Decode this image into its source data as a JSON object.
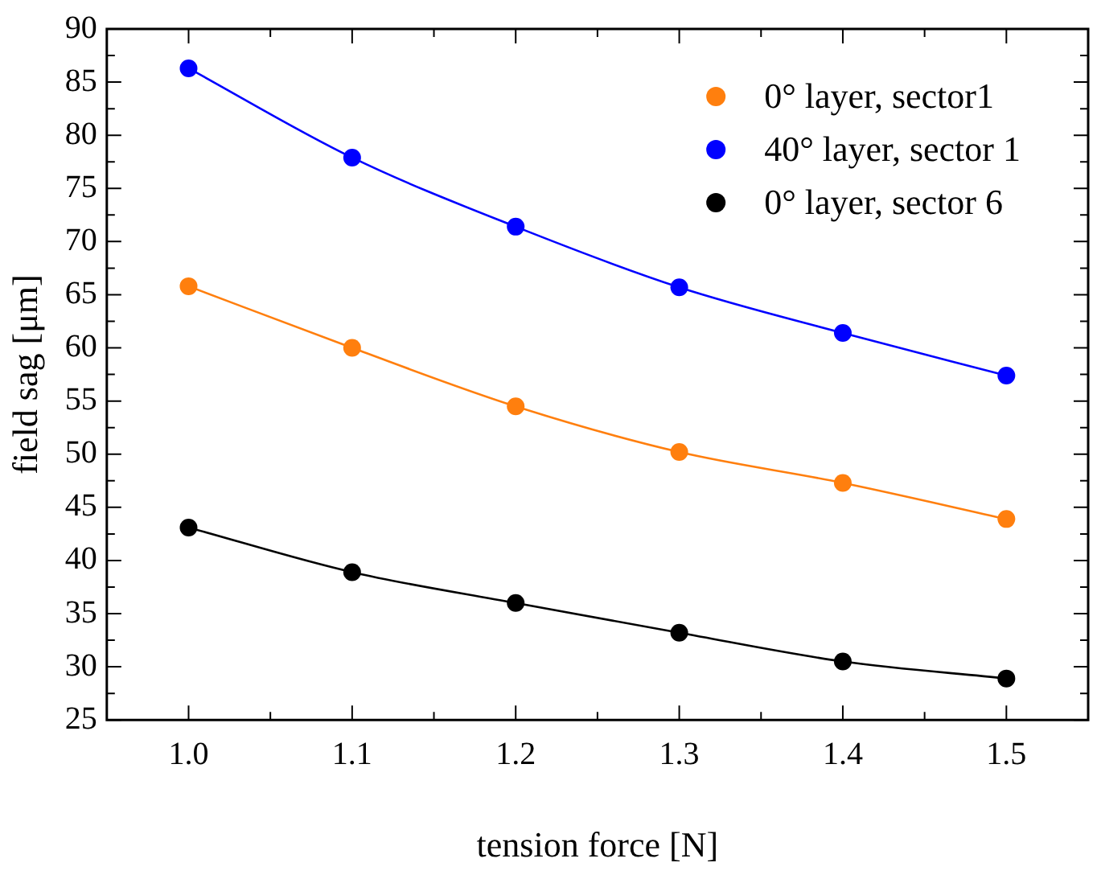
{
  "chart_data": {
    "type": "line",
    "xlabel": "tension force [N]",
    "ylabel": "field sag [μm]",
    "x": [
      1.0,
      1.1,
      1.2,
      1.3,
      1.4,
      1.5
    ],
    "series": [
      {
        "name": "0° layer, sector1",
        "color": "#ff7f0e",
        "values": [
          65.8,
          60.0,
          54.5,
          50.2,
          47.3,
          43.9
        ]
      },
      {
        "name": "40° layer, sector 1",
        "color": "#0000ff",
        "values": [
          86.3,
          77.9,
          71.4,
          65.7,
          61.4,
          57.4
        ]
      },
      {
        "name": "0° layer, sector 6",
        "color": "#000000",
        "values": [
          43.1,
          38.9,
          36.0,
          33.2,
          30.5,
          28.9
        ]
      }
    ],
    "xlim": [
      0.95,
      1.55
    ],
    "xticks": [
      {
        "value": 1.0,
        "label": "1.0"
      },
      {
        "value": 1.05,
        "label": null
      },
      {
        "value": 1.1,
        "label": "1.1"
      },
      {
        "value": 1.15,
        "label": null
      },
      {
        "value": 1.2,
        "label": "1.2"
      },
      {
        "value": 1.25,
        "label": null
      },
      {
        "value": 1.3,
        "label": "1.3"
      },
      {
        "value": 1.35,
        "label": null
      },
      {
        "value": 1.4,
        "label": "1.4"
      },
      {
        "value": 1.45,
        "label": null
      },
      {
        "value": 1.5,
        "label": "1.5"
      }
    ],
    "ylim": [
      25,
      90
    ],
    "yticks": [
      25,
      {
        "value": 27.5,
        "label": null
      },
      30,
      {
        "value": 32.5,
        "label": null
      },
      35,
      {
        "value": 37.5,
        "label": null
      },
      40,
      {
        "value": 42.5,
        "label": null
      },
      45,
      {
        "value": 47.5,
        "label": null
      },
      50,
      {
        "value": 52.5,
        "label": null
      },
      55,
      {
        "value": 57.5,
        "label": null
      },
      60,
      {
        "value": 62.5,
        "label": null
      },
      65,
      {
        "value": 67.5,
        "label": null
      },
      70,
      {
        "value": 72.5,
        "label": null
      },
      75,
      {
        "value": 77.5,
        "label": null
      },
      80,
      {
        "value": 82.5,
        "label": null
      },
      85,
      {
        "value": 87.5,
        "label": null
      },
      90
    ],
    "grid": false,
    "legend": "top right",
    "marker": "circle",
    "line_style": "solid"
  }
}
